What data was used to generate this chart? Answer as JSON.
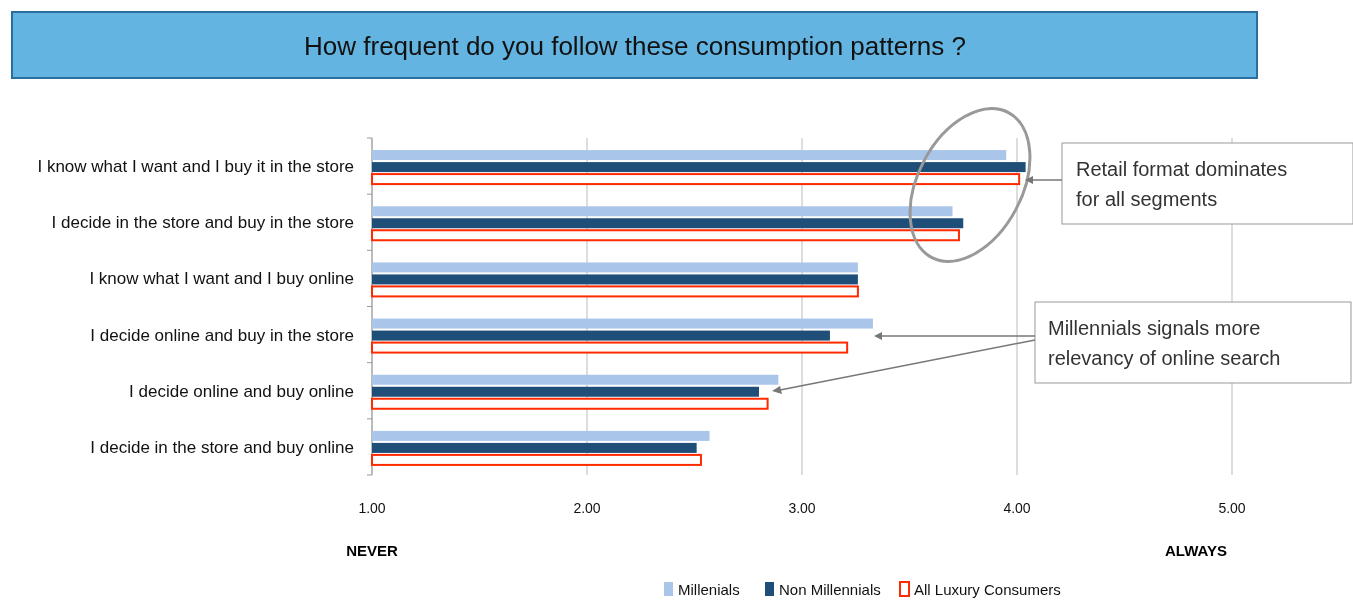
{
  "chart_data": {
    "type": "bar",
    "orientation": "horizontal",
    "title": "How frequent do you follow these consumption patterns ?",
    "categories": [
      "I know what I want and I buy it in the store",
      "I decide in the store and buy in the store",
      "I know what I want and I buy online",
      "I decide online and buy in the store",
      "I decide online and buy online",
      "I decide in the store and buy online"
    ],
    "series": [
      {
        "name": "Millenials",
        "color": "#a9c6ea",
        "values": [
          3.95,
          3.7,
          3.26,
          3.33,
          2.89,
          2.57
        ]
      },
      {
        "name": "Non Millennials",
        "color": "#1f4e79",
        "values": [
          4.04,
          3.75,
          3.26,
          3.13,
          2.8,
          2.51
        ]
      },
      {
        "name": "All Luxury Consumers",
        "color": "#ff2a00",
        "values": [
          4.01,
          3.73,
          3.26,
          3.21,
          2.84,
          2.53
        ]
      }
    ],
    "xlim": [
      1,
      5
    ],
    "xticks": [
      {
        "value": 1,
        "label": "1.00"
      },
      {
        "value": 2,
        "label": "2.00"
      },
      {
        "value": 3,
        "label": "3.00"
      },
      {
        "value": 4,
        "label": "4.00"
      },
      {
        "value": 5,
        "label": "5.00"
      }
    ],
    "grid": "x",
    "legend": "bottom",
    "annotations": [
      "NEVER",
      "ALWAYS",
      "Retail format dominates for all segments",
      "Millennials signals more relevancy of online search"
    ]
  }
}
